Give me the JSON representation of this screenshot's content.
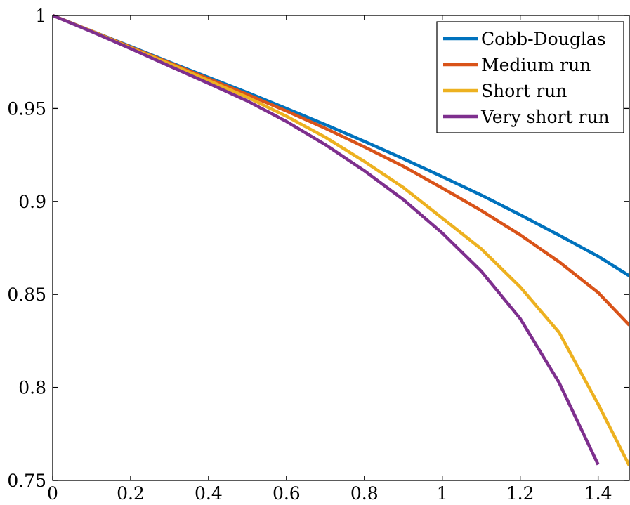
{
  "chart_data": {
    "type": "line",
    "title": "",
    "xlabel": "",
    "ylabel": "",
    "xlim": [
      0,
      1.48
    ],
    "ylim": [
      0.75,
      1
    ],
    "x_ticks": [
      0,
      0.2,
      0.4,
      0.6,
      0.8,
      1,
      1.2,
      1.4
    ],
    "x_tick_labels": [
      "0",
      "0.2",
      "0.4",
      "0.6",
      "0.8",
      "1",
      "1.2",
      "1.4"
    ],
    "y_ticks": [
      0.75,
      0.8,
      0.85,
      0.9,
      0.95,
      1
    ],
    "y_tick_labels": [
      "0.75",
      "0.8",
      "0.85",
      "0.9",
      "0.95",
      "1"
    ],
    "grid": false,
    "legend_position": "top-right",
    "series": [
      {
        "name": "Cobb-Douglas",
        "color": "#0072BD",
        "x": [
          0,
          0.1,
          0.2,
          0.3,
          0.4,
          0.5,
          0.6,
          0.7,
          0.8,
          0.9,
          1.0,
          1.1,
          1.2,
          1.3,
          1.4,
          1.48
        ],
        "y": [
          1,
          0.9916,
          0.9833,
          0.9749,
          0.9667,
          0.9585,
          0.95,
          0.9413,
          0.9323,
          0.923,
          0.9133,
          0.9034,
          0.8928,
          0.8818,
          0.8705,
          0.86
        ]
      },
      {
        "name": "Medium run",
        "color": "#D95319",
        "x": [
          0,
          0.1,
          0.2,
          0.3,
          0.4,
          0.5,
          0.6,
          0.7,
          0.8,
          0.9,
          1.0,
          1.1,
          1.2,
          1.3,
          1.4,
          1.48
        ],
        "y": [
          1,
          0.9916,
          0.983,
          0.9745,
          0.966,
          0.9575,
          0.9486,
          0.9393,
          0.9293,
          0.9189,
          0.9072,
          0.8951,
          0.882,
          0.8675,
          0.851,
          0.8335
        ]
      },
      {
        "name": "Short run",
        "color": "#EDB120",
        "x": [
          0,
          0.1,
          0.2,
          0.3,
          0.4,
          0.5,
          0.6,
          0.7,
          0.8,
          0.9,
          1.0,
          1.1,
          1.2,
          1.3,
          1.4,
          1.48
        ],
        "y": [
          1,
          0.9915,
          0.9826,
          0.974,
          0.965,
          0.956,
          0.9458,
          0.9345,
          0.9215,
          0.9075,
          0.891,
          0.8745,
          0.854,
          0.8295,
          0.791,
          0.758
        ]
      },
      {
        "name": "Very short run",
        "color": "#7E2F8E",
        "x": [
          0,
          0.1,
          0.2,
          0.3,
          0.4,
          0.5,
          0.6,
          0.7,
          0.8,
          0.9,
          1.0,
          1.1,
          1.2,
          1.3,
          1.4
        ],
        "y": [
          1,
          0.9913,
          0.9822,
          0.9728,
          0.9635,
          0.954,
          0.943,
          0.9305,
          0.9165,
          0.901,
          0.883,
          0.8625,
          0.837,
          0.8025,
          0.7585
        ]
      }
    ]
  }
}
